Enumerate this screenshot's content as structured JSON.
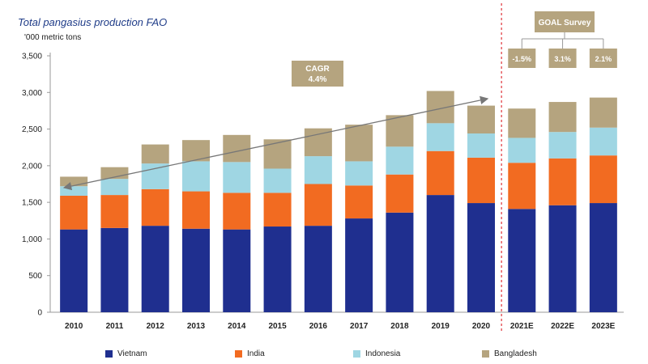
{
  "chart_data": {
    "type": "stacked-bar",
    "title": "Total pangasius production FAO",
    "unit_label": "'000 metric tons",
    "categories": [
      "2010",
      "2011",
      "2012",
      "2013",
      "2014",
      "2015",
      "2016",
      "2017",
      "2018",
      "2019",
      "2020",
      "2021E",
      "2022E",
      "2023E"
    ],
    "ylim": [
      0,
      3500
    ],
    "yticks": [
      0,
      500,
      1000,
      1500,
      2000,
      2500,
      3000,
      3500
    ],
    "ytick_labels": [
      "0",
      "500",
      "1,000",
      "1,500",
      "2,000",
      "2,500",
      "3,000",
      "3,500"
    ],
    "series": [
      {
        "name": "Vietnam",
        "color": "#1f2f8f",
        "values": [
          1130,
          1150,
          1180,
          1140,
          1130,
          1170,
          1180,
          1280,
          1360,
          1600,
          1490,
          1410,
          1460,
          1490
        ]
      },
      {
        "name": "India",
        "color": "#f26b21",
        "values": [
          460,
          450,
          500,
          510,
          500,
          460,
          570,
          450,
          520,
          600,
          620,
          630,
          640,
          650
        ]
      },
      {
        "name": "Indonesia",
        "color": "#9fd6e3",
        "values": [
          130,
          220,
          350,
          410,
          420,
          330,
          380,
          330,
          380,
          380,
          330,
          340,
          360,
          380
        ]
      },
      {
        "name": "Bangladesh",
        "color": "#b5a47f",
        "values": [
          130,
          160,
          260,
          290,
          370,
          400,
          380,
          500,
          430,
          440,
          380,
          400,
          410,
          410
        ]
      }
    ],
    "annotations": {
      "cagr_title": "CAGR",
      "cagr_value": "4.4%",
      "survey_title": "GOAL Survey",
      "survey_values": [
        "-1.5%",
        "3.1%",
        "2.1%"
      ]
    },
    "forecast_start": "2021E",
    "grid": false,
    "legend_position": "bottom"
  },
  "colors": {
    "accent": "#1f3c88",
    "annotation_box": "#b5a47f",
    "divider": "#e0343a"
  }
}
